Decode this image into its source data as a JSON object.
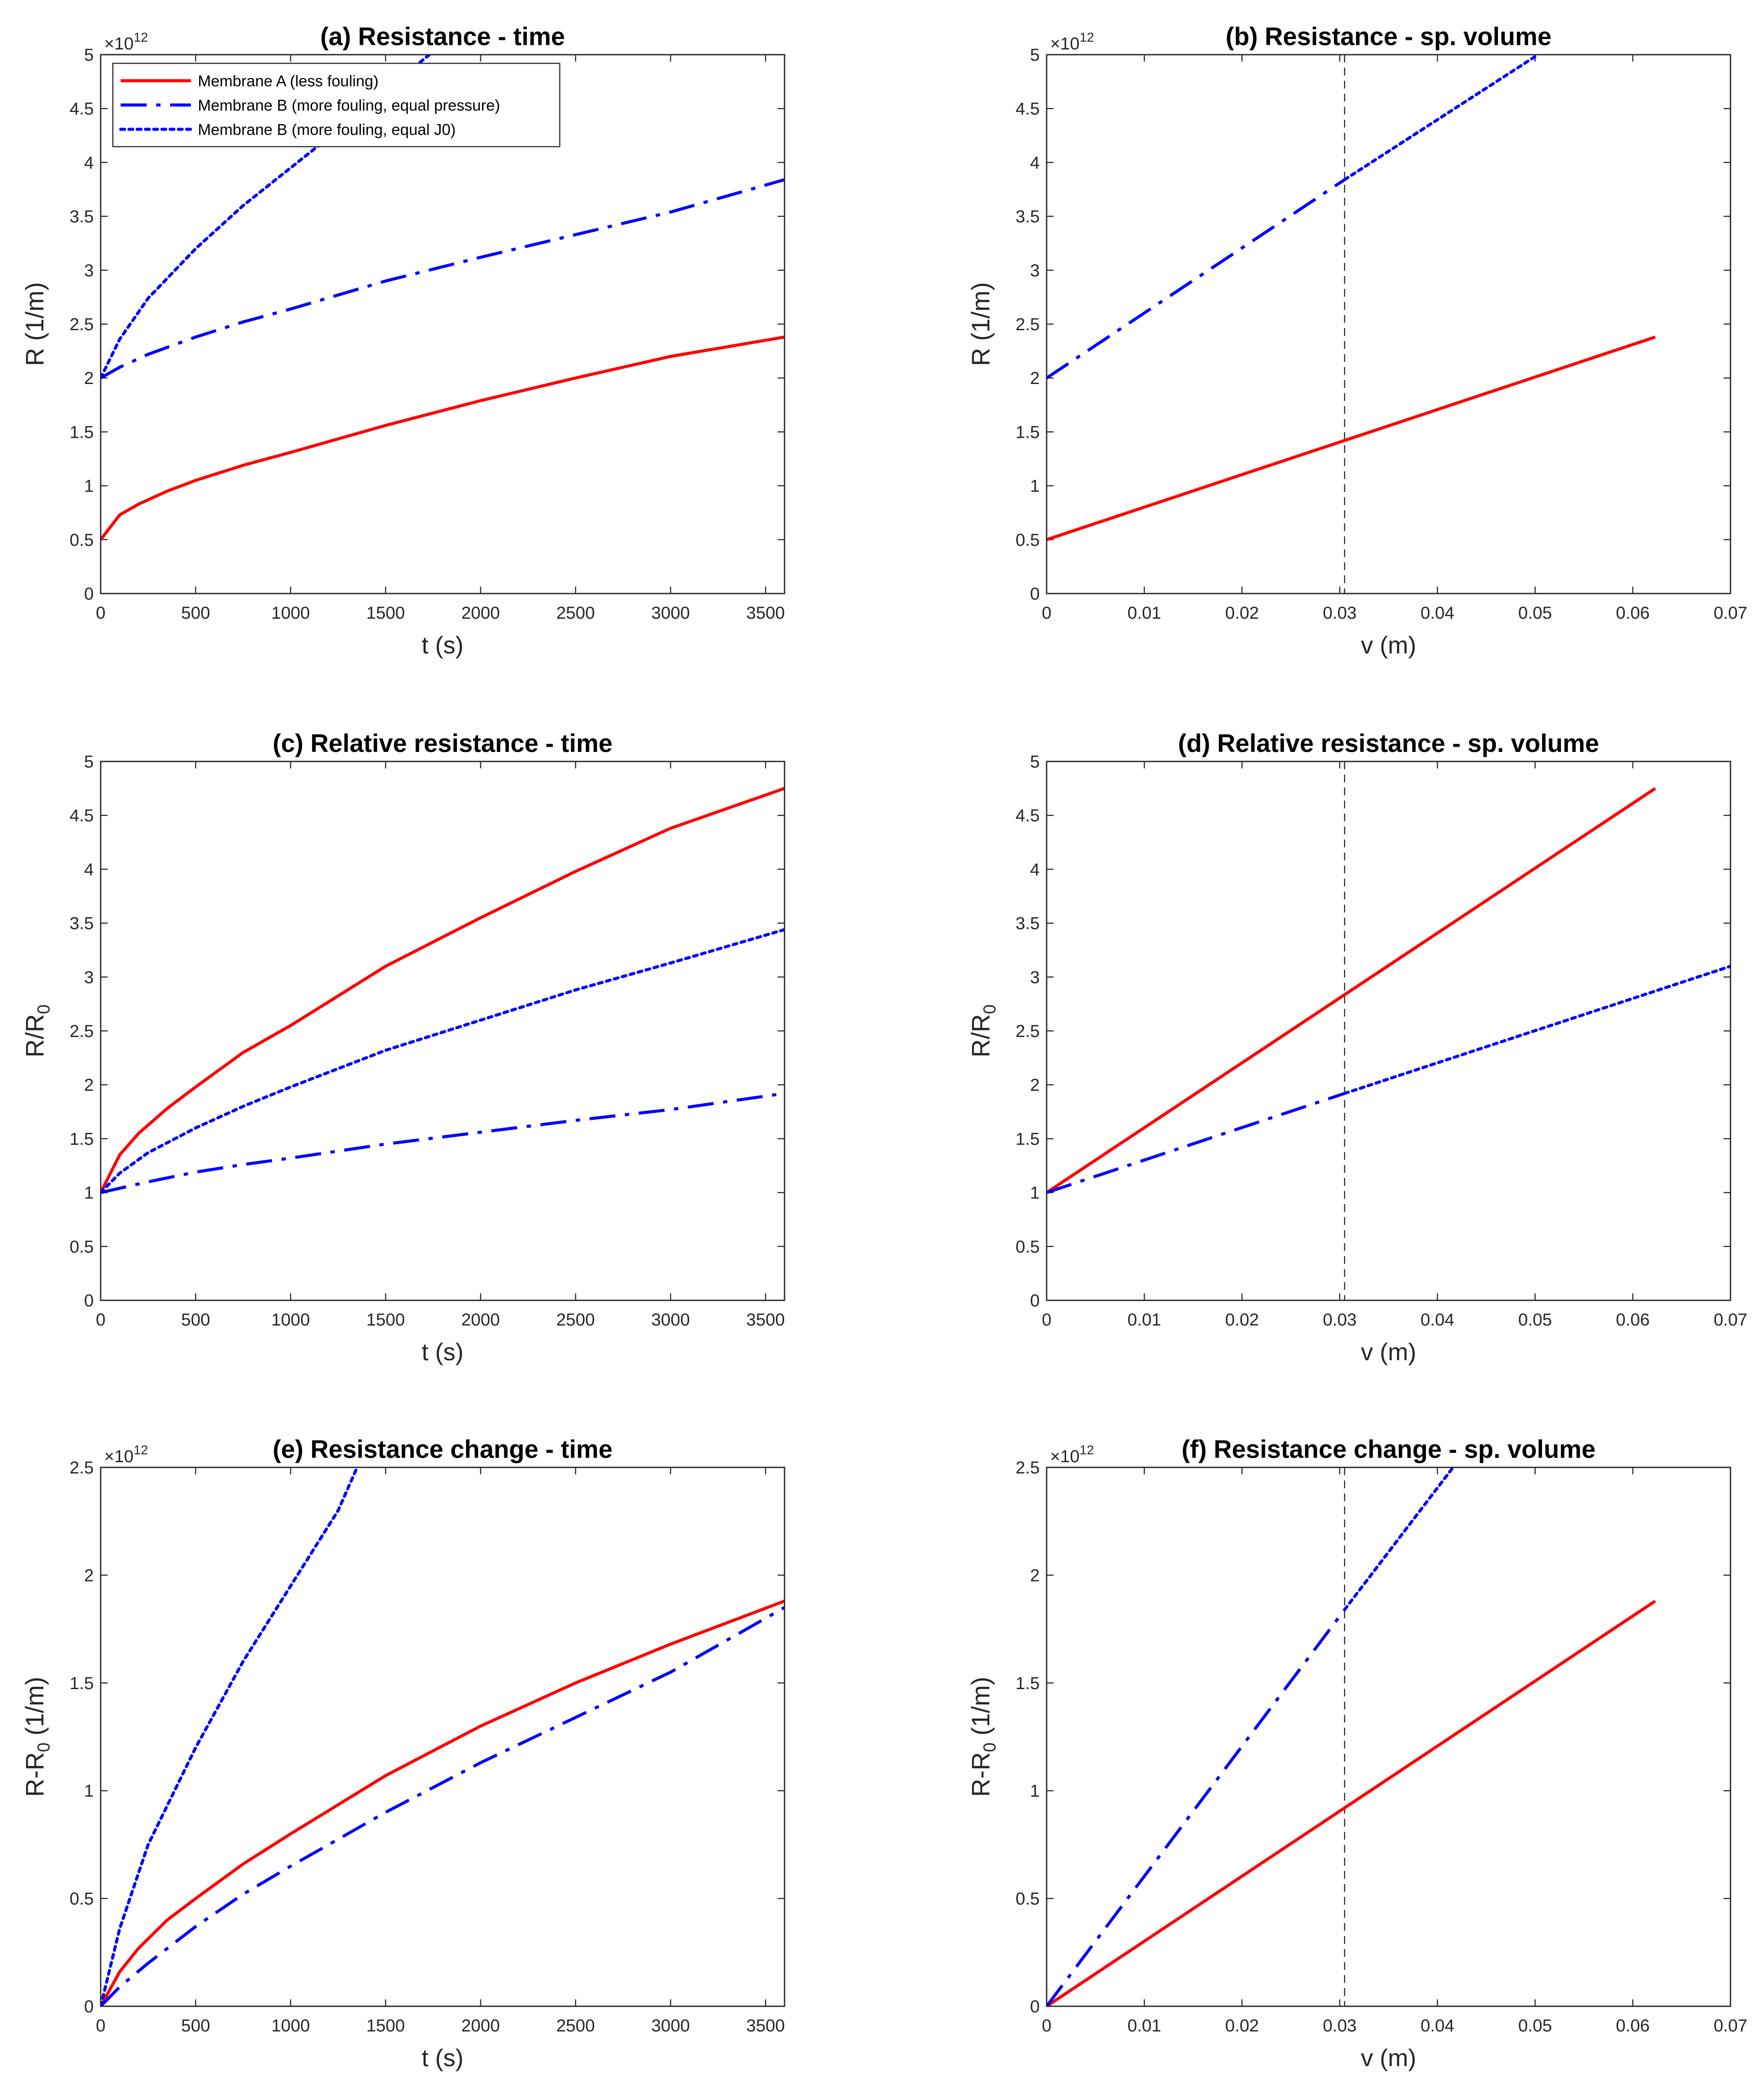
{
  "figure": {
    "background": "#ffffff",
    "axis_color": "#262626",
    "colors": {
      "membrane_a": "#ff0000",
      "membrane_b": "#0000ff",
      "reference_line": "#262626"
    }
  },
  "legend": {
    "location": "top-left of panel (a)",
    "entries": [
      {
        "label": "Membrane A (less fouling)",
        "color": "#ff0000",
        "style": "solid"
      },
      {
        "label": "Membrane B (more fouling, equal pressure)",
        "color": "#0000ff",
        "style": "dashdot"
      },
      {
        "label": "Membrane B (more fouling, equal J0)",
        "color": "#0000ff",
        "style": "dotted"
      }
    ]
  },
  "chart_data": [
    {
      "id": "a",
      "type": "line",
      "title": "(a) Resistance - time",
      "xlabel": "t (s)",
      "ylabel": {
        "main": "R (1/m)"
      },
      "xlim": [
        0,
        3600
      ],
      "ylim": [
        0,
        5
      ],
      "xticks": [
        {
          "v": 0,
          "label": "0"
        },
        {
          "v": 500,
          "label": "500"
        },
        {
          "v": 1000,
          "label": "1000"
        },
        {
          "v": 1500,
          "label": "1500"
        },
        {
          "v": 2000,
          "label": "2000"
        },
        {
          "v": 2500,
          "label": "2500"
        },
        {
          "v": 3000,
          "label": "3000"
        },
        {
          "v": 3500,
          "label": "3500"
        }
      ],
      "yticks": [
        {
          "v": 0,
          "label": "0"
        },
        {
          "v": 0.5,
          "label": "0.5"
        },
        {
          "v": 1,
          "label": "1"
        },
        {
          "v": 1.5,
          "label": "1.5"
        },
        {
          "v": 2,
          "label": "2"
        },
        {
          "v": 2.5,
          "label": "2.5"
        },
        {
          "v": 3,
          "label": "3"
        },
        {
          "v": 3.5,
          "label": "3.5"
        },
        {
          "v": 4,
          "label": "4"
        },
        {
          "v": 4.5,
          "label": "4.5"
        },
        {
          "v": 5,
          "label": "5"
        }
      ],
      "exponent": {
        "base": "×10",
        "power": "12"
      },
      "series": [
        {
          "name": "Membrane A (less fouling)",
          "color": "#ff0000",
          "style": "solid",
          "x": [
            0,
            100,
            200,
            350,
            500,
            750,
            1000,
            1500,
            2000,
            2500,
            3000,
            3600
          ],
          "y": [
            0.5,
            0.73,
            0.83,
            0.95,
            1.05,
            1.19,
            1.31,
            1.56,
            1.79,
            2.0,
            2.2,
            2.38
          ]
        },
        {
          "name": "Membrane B (more fouling, equal pressure)",
          "color": "#0000ff",
          "style": "dashdot",
          "x": [
            0,
            100,
            250,
            500,
            750,
            1000,
            1500,
            2000,
            2500,
            3000,
            3600
          ],
          "y": [
            2.0,
            2.1,
            2.22,
            2.38,
            2.52,
            2.64,
            2.9,
            3.12,
            3.33,
            3.54,
            3.84
          ]
        },
        {
          "name": "Membrane B (more fouling, equal J0)",
          "color": "#0000ff",
          "style": "dotted",
          "x": [
            0,
            100,
            250,
            500,
            750,
            1000,
            1250,
            1730
          ],
          "y": [
            2.0,
            2.36,
            2.74,
            3.2,
            3.6,
            3.95,
            4.3,
            5.0
          ]
        }
      ]
    },
    {
      "id": "b",
      "type": "line",
      "title": "(b) Resistance - sp. volume",
      "xlabel": "v (m)",
      "ylabel": {
        "main": "R (1/m)"
      },
      "xlim": [
        0,
        0.07
      ],
      "ylim": [
        0,
        5
      ],
      "xticks": [
        {
          "v": 0,
          "label": "0"
        },
        {
          "v": 0.01,
          "label": "0.01"
        },
        {
          "v": 0.02,
          "label": "0.02"
        },
        {
          "v": 0.03,
          "label": "0.03"
        },
        {
          "v": 0.04,
          "label": "0.04"
        },
        {
          "v": 0.05,
          "label": "0.05"
        },
        {
          "v": 0.06,
          "label": "0.06"
        },
        {
          "v": 0.07,
          "label": "0.07"
        }
      ],
      "yticks": [
        {
          "v": 0,
          "label": "0"
        },
        {
          "v": 0.5,
          "label": "0.5"
        },
        {
          "v": 1,
          "label": "1"
        },
        {
          "v": 1.5,
          "label": "1.5"
        },
        {
          "v": 2,
          "label": "2"
        },
        {
          "v": 2.5,
          "label": "2.5"
        },
        {
          "v": 3,
          "label": "3"
        },
        {
          "v": 3.5,
          "label": "3.5"
        },
        {
          "v": 4,
          "label": "4"
        },
        {
          "v": 4.5,
          "label": "4.5"
        },
        {
          "v": 5,
          "label": "5"
        }
      ],
      "exponent": {
        "base": "×10",
        "power": "12"
      },
      "vline": 0.0305,
      "series": [
        {
          "name": "Membrane A (less fouling)",
          "color": "#ff0000",
          "style": "solid",
          "x": [
            0,
            0.0623
          ],
          "y": [
            0.5,
            2.38
          ]
        },
        {
          "name": "Membrane B (more fouling, equal pressure)",
          "color": "#0000ff",
          "style": "dashdot",
          "x": [
            0,
            0.0305
          ],
          "y": [
            2.0,
            3.84
          ]
        },
        {
          "name": "Membrane B (more fouling, equal J0)",
          "color": "#0000ff",
          "style": "dotted",
          "x": [
            0.0305,
            0.0503
          ],
          "y": [
            3.84,
            5.0
          ]
        }
      ]
    },
    {
      "id": "c",
      "type": "line",
      "title": "(c) Relative resistance - time",
      "xlabel": "t (s)",
      "ylabel": {
        "main": "R/R",
        "sub": "0"
      },
      "xlim": [
        0,
        3600
      ],
      "ylim": [
        0,
        5
      ],
      "xticks": [
        {
          "v": 0,
          "label": "0"
        },
        {
          "v": 500,
          "label": "500"
        },
        {
          "v": 1000,
          "label": "1000"
        },
        {
          "v": 1500,
          "label": "1500"
        },
        {
          "v": 2000,
          "label": "2000"
        },
        {
          "v": 2500,
          "label": "2500"
        },
        {
          "v": 3000,
          "label": "3000"
        },
        {
          "v": 3500,
          "label": "3500"
        }
      ],
      "yticks": [
        {
          "v": 0,
          "label": "0"
        },
        {
          "v": 0.5,
          "label": "0.5"
        },
        {
          "v": 1,
          "label": "1"
        },
        {
          "v": 1.5,
          "label": "1.5"
        },
        {
          "v": 2,
          "label": "2"
        },
        {
          "v": 2.5,
          "label": "2.5"
        },
        {
          "v": 3,
          "label": "3"
        },
        {
          "v": 3.5,
          "label": "3.5"
        },
        {
          "v": 4,
          "label": "4"
        },
        {
          "v": 4.5,
          "label": "4.5"
        },
        {
          "v": 5,
          "label": "5"
        }
      ],
      "series": [
        {
          "name": "Membrane A (less fouling)",
          "color": "#ff0000",
          "style": "solid",
          "x": [
            0,
            100,
            200,
            350,
            500,
            750,
            1000,
            1500,
            2000,
            2500,
            3000,
            3600
          ],
          "y": [
            1.0,
            1.35,
            1.55,
            1.78,
            1.98,
            2.3,
            2.55,
            3.1,
            3.55,
            3.98,
            4.38,
            4.75
          ]
        },
        {
          "name": "Membrane B (more fouling, equal pressure)",
          "color": "#0000ff",
          "style": "dashdot",
          "x": [
            0,
            250,
            500,
            750,
            1000,
            1500,
            2000,
            2500,
            3000,
            3600
          ],
          "y": [
            1.0,
            1.1,
            1.19,
            1.26,
            1.32,
            1.45,
            1.56,
            1.67,
            1.77,
            1.92
          ]
        },
        {
          "name": "Membrane B (more fouling, equal J0)",
          "color": "#0000ff",
          "style": "dotted",
          "x": [
            0,
            100,
            250,
            500,
            750,
            1000,
            1500,
            2000,
            2500,
            3000,
            3600
          ],
          "y": [
            1.0,
            1.18,
            1.37,
            1.6,
            1.8,
            1.98,
            2.32,
            2.6,
            2.88,
            3.13,
            3.44
          ]
        }
      ]
    },
    {
      "id": "d",
      "type": "line",
      "title": "(d) Relative resistance - sp. volume",
      "xlabel": "v (m)",
      "ylabel": {
        "main": "R/R",
        "sub": "0"
      },
      "xlim": [
        0,
        0.07
      ],
      "ylim": [
        0,
        5
      ],
      "xticks": [
        {
          "v": 0,
          "label": "0"
        },
        {
          "v": 0.01,
          "label": "0.01"
        },
        {
          "v": 0.02,
          "label": "0.02"
        },
        {
          "v": 0.03,
          "label": "0.03"
        },
        {
          "v": 0.04,
          "label": "0.04"
        },
        {
          "v": 0.05,
          "label": "0.05"
        },
        {
          "v": 0.06,
          "label": "0.06"
        },
        {
          "v": 0.07,
          "label": "0.07"
        }
      ],
      "yticks": [
        {
          "v": 0,
          "label": "0"
        },
        {
          "v": 0.5,
          "label": "0.5"
        },
        {
          "v": 1,
          "label": "1"
        },
        {
          "v": 1.5,
          "label": "1.5"
        },
        {
          "v": 2,
          "label": "2"
        },
        {
          "v": 2.5,
          "label": "2.5"
        },
        {
          "v": 3,
          "label": "3"
        },
        {
          "v": 3.5,
          "label": "3.5"
        },
        {
          "v": 4,
          "label": "4"
        },
        {
          "v": 4.5,
          "label": "4.5"
        },
        {
          "v": 5,
          "label": "5"
        }
      ],
      "vline": 0.0305,
      "series": [
        {
          "name": "Membrane A (less fouling)",
          "color": "#ff0000",
          "style": "solid",
          "x": [
            0,
            0.0623
          ],
          "y": [
            1.0,
            4.75
          ]
        },
        {
          "name": "Membrane B (more fouling, equal pressure)",
          "color": "#0000ff",
          "style": "dashdot",
          "x": [
            0,
            0.0305
          ],
          "y": [
            1.0,
            1.92
          ]
        },
        {
          "name": "Membrane B (more fouling, equal J0)",
          "color": "#0000ff",
          "style": "dotted",
          "x": [
            0.0305,
            0.07
          ],
          "y": [
            1.92,
            3.1
          ]
        }
      ]
    },
    {
      "id": "e",
      "type": "line",
      "title": "(e) Resistance change - time",
      "xlabel": "t (s)",
      "ylabel": {
        "main": "R-R",
        "sub": "0",
        "suffix": " (1/m)"
      },
      "xlim": [
        0,
        3600
      ],
      "ylim": [
        0,
        2.5
      ],
      "xticks": [
        {
          "v": 0,
          "label": "0"
        },
        {
          "v": 500,
          "label": "500"
        },
        {
          "v": 1000,
          "label": "1000"
        },
        {
          "v": 1500,
          "label": "1500"
        },
        {
          "v": 2000,
          "label": "2000"
        },
        {
          "v": 2500,
          "label": "2500"
        },
        {
          "v": 3000,
          "label": "3000"
        },
        {
          "v": 3500,
          "label": "3500"
        }
      ],
      "yticks": [
        {
          "v": 0,
          "label": "0"
        },
        {
          "v": 0.5,
          "label": "0.5"
        },
        {
          "v": 1,
          "label": "1"
        },
        {
          "v": 1.5,
          "label": "1.5"
        },
        {
          "v": 2,
          "label": "2"
        },
        {
          "v": 2.5,
          "label": "2.5"
        }
      ],
      "exponent": {
        "base": "×10",
        "power": "12"
      },
      "series": [
        {
          "name": "Membrane A (less fouling)",
          "color": "#ff0000",
          "style": "solid",
          "x": [
            0,
            100,
            200,
            350,
            500,
            750,
            1000,
            1500,
            2000,
            2500,
            3000,
            3600
          ],
          "y": [
            0,
            0.16,
            0.27,
            0.4,
            0.5,
            0.66,
            0.8,
            1.07,
            1.3,
            1.5,
            1.68,
            1.88
          ]
        },
        {
          "name": "Membrane B (more fouling, equal pressure)",
          "color": "#0000ff",
          "style": "dashdot",
          "x": [
            0,
            100,
            250,
            500,
            750,
            1000,
            1500,
            2000,
            2500,
            3000,
            3600
          ],
          "y": [
            0,
            0.09,
            0.2,
            0.37,
            0.52,
            0.65,
            0.9,
            1.13,
            1.34,
            1.55,
            1.85
          ]
        },
        {
          "name": "Membrane B (more fouling, equal J0)",
          "color": "#0000ff",
          "style": "dotted",
          "x": [
            0,
            100,
            250,
            500,
            750,
            1000,
            1250,
            1350
          ],
          "y": [
            0,
            0.36,
            0.75,
            1.2,
            1.6,
            1.95,
            2.3,
            2.5
          ]
        }
      ]
    },
    {
      "id": "f",
      "type": "line",
      "title": "(f) Resistance change - sp. volume",
      "xlabel": "v (m)",
      "ylabel": {
        "main": "R-R",
        "sub": "0",
        "suffix": " (1/m)"
      },
      "xlim": [
        0,
        0.07
      ],
      "ylim": [
        0,
        2.5
      ],
      "xticks": [
        {
          "v": 0,
          "label": "0"
        },
        {
          "v": 0.01,
          "label": "0.01"
        },
        {
          "v": 0.02,
          "label": "0.02"
        },
        {
          "v": 0.03,
          "label": "0.03"
        },
        {
          "v": 0.04,
          "label": "0.04"
        },
        {
          "v": 0.05,
          "label": "0.05"
        },
        {
          "v": 0.06,
          "label": "0.06"
        },
        {
          "v": 0.07,
          "label": "0.07"
        }
      ],
      "yticks": [
        {
          "v": 0,
          "label": "0"
        },
        {
          "v": 0.5,
          "label": "0.5"
        },
        {
          "v": 1,
          "label": "1"
        },
        {
          "v": 1.5,
          "label": "1.5"
        },
        {
          "v": 2,
          "label": "2"
        },
        {
          "v": 2.5,
          "label": "2.5"
        }
      ],
      "exponent": {
        "base": "×10",
        "power": "12"
      },
      "vline": 0.0305,
      "series": [
        {
          "name": "Membrane A (less fouling)",
          "color": "#ff0000",
          "style": "solid",
          "x": [
            0,
            0.0623
          ],
          "y": [
            0,
            1.88
          ]
        },
        {
          "name": "Membrane B (more fouling, equal pressure)",
          "color": "#0000ff",
          "style": "dashdot",
          "x": [
            0,
            0.0305
          ],
          "y": [
            0,
            1.84
          ]
        },
        {
          "name": "Membrane B (more fouling, equal J0)",
          "color": "#0000ff",
          "style": "dotted",
          "x": [
            0.0305,
            0.0416
          ],
          "y": [
            1.84,
            2.5
          ]
        }
      ]
    }
  ]
}
